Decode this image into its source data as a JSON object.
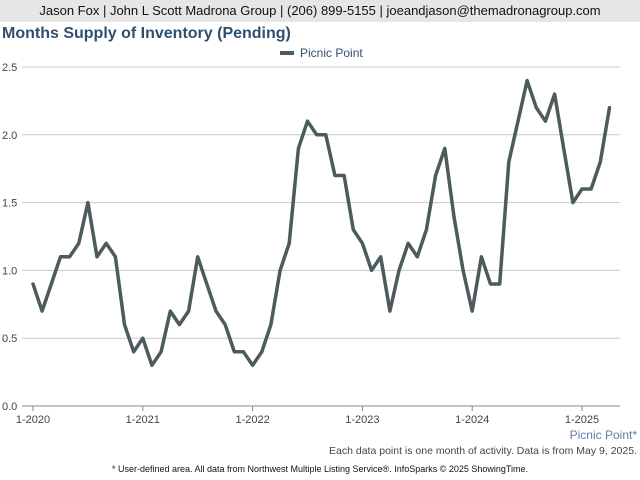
{
  "header": {
    "contact": "Jason Fox | John L Scott Madrona Group | (206) 899-5155 | joeandjason@themadronagroup.com"
  },
  "chart_data": {
    "type": "line",
    "title": "Months Supply of Inventory (Pending)",
    "xlabel": "",
    "ylabel": "",
    "ylim": [
      0,
      2.5
    ],
    "yticks": [
      "0.0",
      "0.5",
      "1.0",
      "1.5",
      "2.0",
      "2.5"
    ],
    "xticks": [
      "1-2020",
      "1-2021",
      "1-2022",
      "1-2023",
      "1-2024",
      "1-2025"
    ],
    "grid": true,
    "legend_position": "top-center",
    "series": [
      {
        "name": "Picnic Point",
        "color": "#4c5b5b",
        "x": [
          "1-2020",
          "2-2020",
          "3-2020",
          "4-2020",
          "5-2020",
          "6-2020",
          "7-2020",
          "8-2020",
          "9-2020",
          "10-2020",
          "11-2020",
          "12-2020",
          "1-2021",
          "2-2021",
          "3-2021",
          "4-2021",
          "5-2021",
          "6-2021",
          "7-2021",
          "8-2021",
          "9-2021",
          "10-2021",
          "11-2021",
          "12-2021",
          "1-2022",
          "2-2022",
          "3-2022",
          "4-2022",
          "5-2022",
          "6-2022",
          "7-2022",
          "8-2022",
          "9-2022",
          "10-2022",
          "11-2022",
          "12-2022",
          "1-2023",
          "2-2023",
          "3-2023",
          "4-2023",
          "5-2023",
          "6-2023",
          "7-2023",
          "8-2023",
          "9-2023",
          "10-2023",
          "11-2023",
          "12-2023",
          "1-2024",
          "2-2024",
          "3-2024",
          "4-2024",
          "5-2024",
          "6-2024",
          "7-2024",
          "8-2024",
          "9-2024",
          "10-2024",
          "11-2024",
          "12-2024",
          "1-2025",
          "2-2025",
          "3-2025",
          "4-2025"
        ],
        "values": [
          0.9,
          0.7,
          0.9,
          1.1,
          1.1,
          1.2,
          1.5,
          1.1,
          1.2,
          1.1,
          0.6,
          0.4,
          0.5,
          0.3,
          0.4,
          0.7,
          0.6,
          0.7,
          1.1,
          0.9,
          0.7,
          0.6,
          0.4,
          0.4,
          0.3,
          0.4,
          0.6,
          1.0,
          1.2,
          1.9,
          2.1,
          2.0,
          2.0,
          1.7,
          1.7,
          1.3,
          1.2,
          1.0,
          1.1,
          0.7,
          1.0,
          1.2,
          1.1,
          1.3,
          1.7,
          1.9,
          1.4,
          1.0,
          0.7,
          1.1,
          0.9,
          0.9,
          1.8,
          2.1,
          2.4,
          2.2,
          2.1,
          2.3,
          1.9,
          1.5,
          1.6,
          1.6,
          1.8,
          2.2
        ]
      }
    ],
    "area_label": "Picnic Point*",
    "note": "Each data point is one month of activity. Data is from May 9, 2025."
  },
  "footer": {
    "disclaimer": "* User-defined area. All data from Northwest Multiple Listing Service®. InfoSparks © 2025 ShowingTime."
  }
}
